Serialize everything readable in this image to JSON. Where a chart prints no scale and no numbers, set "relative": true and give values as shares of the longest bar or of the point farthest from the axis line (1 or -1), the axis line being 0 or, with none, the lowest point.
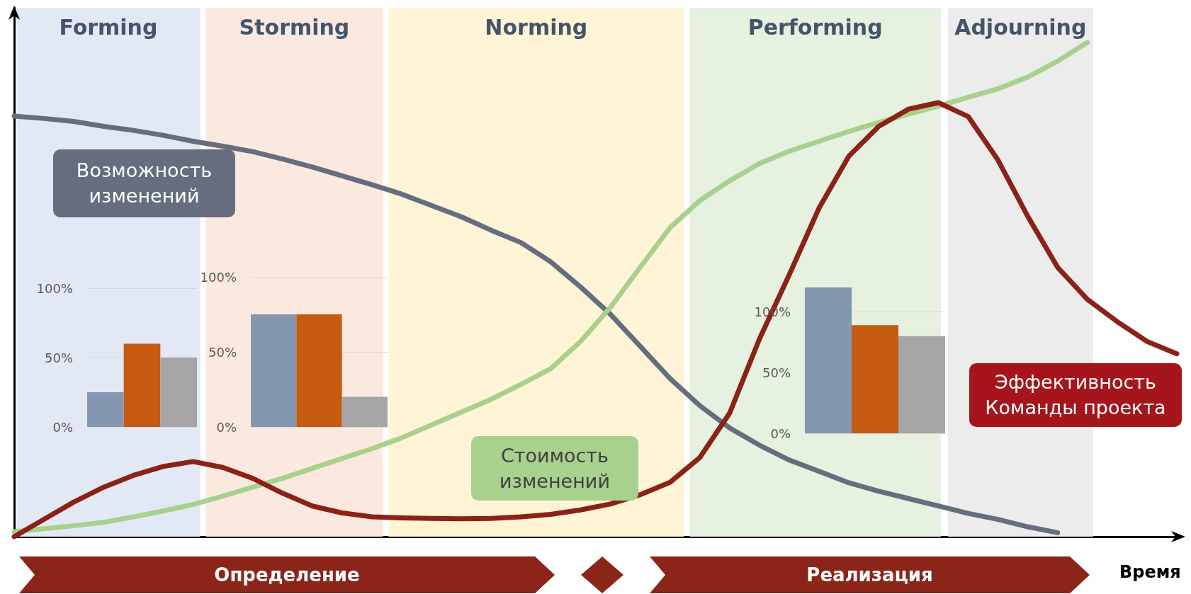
{
  "chart_data": [
    {
      "type": "line",
      "relative": true,
      "xlabel": "Время",
      "categories": [
        null,
        null,
        null,
        null,
        null,
        null,
        null,
        null,
        null,
        null,
        null,
        null,
        null,
        null,
        null,
        null,
        null,
        null,
        null,
        null,
        null,
        null,
        null,
        null,
        null,
        null,
        null,
        null,
        null,
        null,
        null,
        null,
        null,
        null,
        null,
        null,
        null,
        null,
        null,
        null
      ],
      "tick_labels": false,
      "grid": false,
      "legend": false,
      "marker": "none",
      "line_style": "solid",
      "annotations": [
        "Forming",
        "Storming",
        "Norming",
        "Performing",
        "Adjourning",
        "Определение",
        "Реализация"
      ],
      "series": [
        {
          "name": "Возможность изменений",
          "color": "#656d7e",
          "values": [
            0.851,
            0.846,
            0.84,
            0.83,
            0.822,
            0.812,
            0.8,
            0.79,
            0.779,
            0.764,
            0.748,
            0.73,
            0.712,
            0.693,
            0.67,
            0.647,
            0.62,
            0.595,
            0.556,
            0.505,
            0.45,
            0.385,
            0.32,
            0.265,
            0.22,
            0.185,
            0.155,
            0.132,
            0.109,
            0.092,
            0.077,
            0.062,
            0.047,
            0.035,
            0.02,
            0.008,
            null,
            null,
            null,
            null
          ]
        },
        {
          "name": "Стоимость изменений",
          "color": "#a9d18e",
          "values": [
            0.01,
            0.016,
            0.022,
            0.029,
            0.04,
            0.052,
            0.065,
            0.082,
            0.1,
            0.118,
            0.138,
            0.158,
            0.178,
            0.2,
            0.226,
            0.252,
            0.278,
            0.308,
            0.34,
            0.395,
            0.464,
            0.545,
            0.625,
            0.68,
            0.72,
            0.755,
            0.78,
            0.8,
            0.82,
            0.838,
            0.855,
            0.871,
            0.889,
            0.906,
            0.93,
            0.962,
            1.0,
            null,
            null,
            null
          ]
        },
        {
          "name": "Эффективность Команды проекта",
          "color": "#8b2217",
          "values": [
            0.0,
            0.035,
            0.07,
            0.1,
            0.124,
            0.142,
            0.152,
            0.14,
            0.118,
            0.088,
            0.062,
            0.048,
            0.04,
            0.038,
            0.037,
            0.036,
            0.037,
            0.04,
            0.045,
            0.054,
            0.066,
            0.085,
            0.11,
            0.16,
            0.25,
            0.4,
            0.53,
            0.665,
            0.77,
            0.83,
            0.865,
            0.878,
            0.85,
            0.762,
            0.648,
            0.545,
            0.48,
            0.435,
            0.395,
            0.37
          ]
        }
      ]
    },
    {
      "type": "bar",
      "categories": [
        null,
        null,
        null
      ],
      "values": [
        25,
        60,
        50
      ],
      "colors": [
        "#8497b0",
        "#c55a11",
        "#a5a5a5"
      ],
      "ylim": [
        0,
        100
      ],
      "yticks": [
        {
          "value": 0,
          "label": "0%"
        },
        {
          "value": 50,
          "label": "50%"
        },
        {
          "value": 100,
          "label": "100%"
        }
      ],
      "grid": "y",
      "tick_labels": "y"
    },
    {
      "type": "bar",
      "categories": [
        null,
        null,
        null
      ],
      "values": [
        75,
        75,
        20
      ],
      "colors": [
        "#8497b0",
        "#c55a11",
        "#a5a5a5"
      ],
      "ylim": [
        0,
        100
      ],
      "yticks": [
        {
          "value": 0,
          "label": "0%"
        },
        {
          "value": 50,
          "label": "50%"
        },
        {
          "value": 100,
          "label": "100%"
        }
      ],
      "grid": "y",
      "tick_labels": "y"
    },
    {
      "type": "bar",
      "categories": [
        null,
        null,
        null
      ],
      "values": [
        120,
        89,
        80
      ],
      "colors": [
        "#8497b0",
        "#c55a11",
        "#a5a5a5"
      ],
      "ylim": [
        0,
        120
      ],
      "yticks": [
        {
          "value": 0,
          "label": "0%"
        },
        {
          "value": 50,
          "label": "50%"
        },
        {
          "value": 100,
          "label": "100%"
        }
      ],
      "grid": "y",
      "tick_labels": "y"
    }
  ]
}
